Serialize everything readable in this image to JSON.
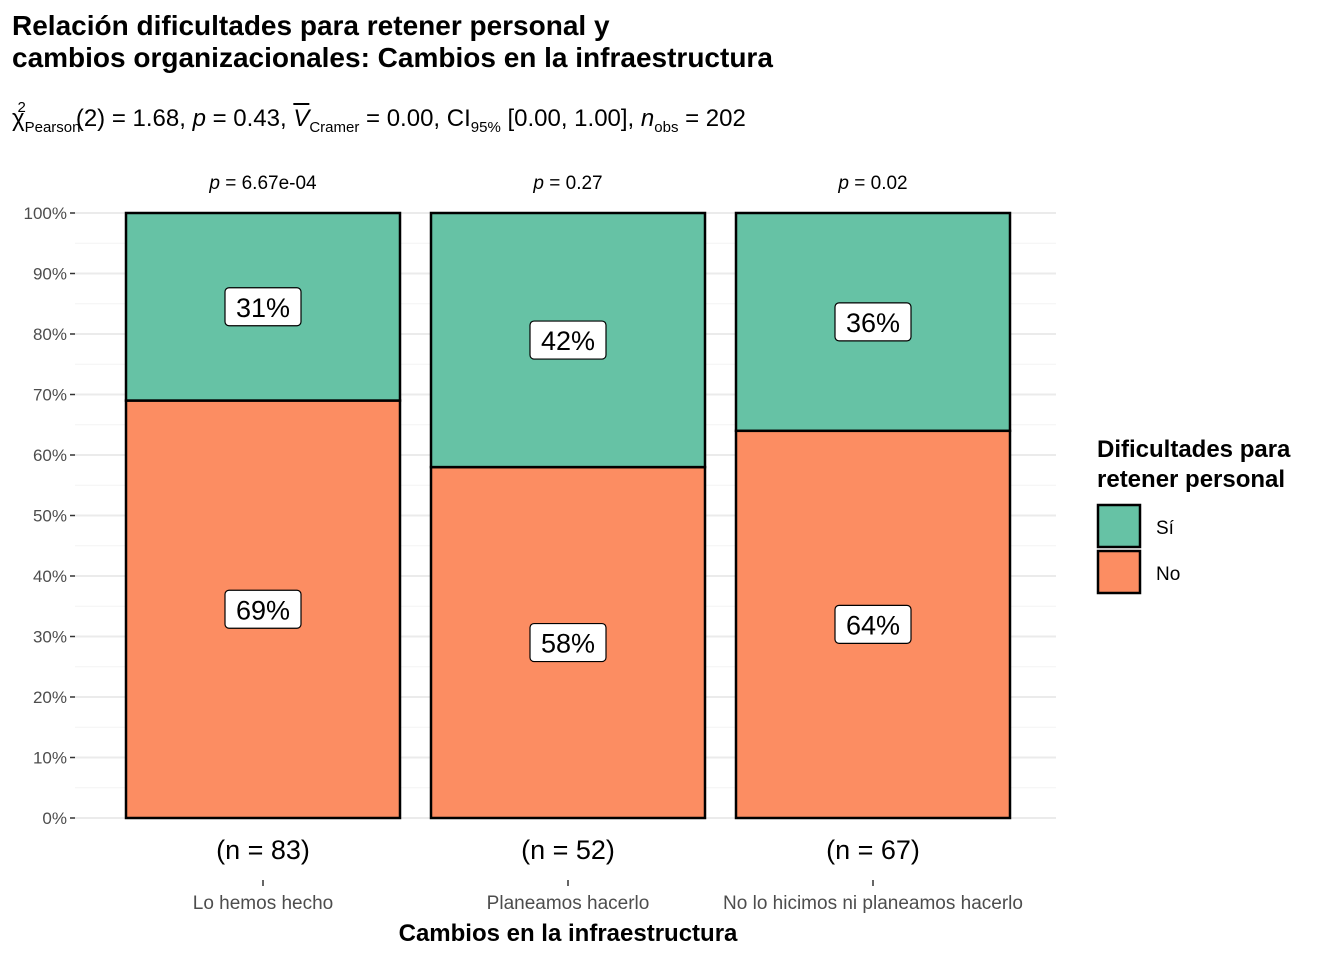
{
  "title": "Relación dificultades para retener personal y\ncambios organizacionales: Cambios en la infraestructura",
  "subtitle": {
    "chi": "χ",
    "chi_sup": "2",
    "chi_sub": "Pearson",
    "chi_val": "(2) = 1.68, ",
    "p_sym": "p",
    "p_val": " = 0.43, ",
    "v_sym": "V",
    "v_sub": "Cramer",
    "v_val": " = 0.00, CI",
    "ci_sub": "95%",
    "ci_val": " [0.00, 1.00], ",
    "n_sym": "n",
    "n_sub": "obs",
    "n_val": " = 202"
  },
  "chart_data": {
    "type": "bar",
    "stacked": true,
    "percent": true,
    "categories": [
      "Lo hemos hecho",
      "Planeamos hacerlo",
      "No lo hicimos ni planeamos hacerlo"
    ],
    "series": [
      {
        "name": "No",
        "values": [
          69,
          58,
          64
        ],
        "labels": [
          "69%",
          "58%",
          "64%"
        ],
        "color": "#FC8D62"
      },
      {
        "name": "Sí",
        "values": [
          31,
          42,
          36
        ],
        "labels": [
          "31%",
          "42%",
          "36%"
        ],
        "color": "#66C2A5"
      }
    ],
    "n_labels": [
      "(n = 83)",
      "(n = 52)",
      "(n = 67)"
    ],
    "p_labels": [
      "6.67e-04",
      "0.27",
      "0.02"
    ],
    "p_prefix": "p",
    "p_eq": " = ",
    "xlabel": "Cambios en la infraestructura",
    "ylabel": "",
    "ylim": [
      0,
      100
    ],
    "yticks": [
      "0%",
      "10%",
      "20%",
      "30%",
      "40%",
      "50%",
      "60%",
      "70%",
      "80%",
      "90%",
      "100%"
    ],
    "legend": {
      "title_lines": [
        "Dificultades para",
        "retener personal"
      ],
      "entries": [
        {
          "name": "Sí",
          "color": "#66C2A5"
        },
        {
          "name": "No",
          "color": "#FC8D62"
        }
      ],
      "placement": "right"
    },
    "grid": true
  }
}
